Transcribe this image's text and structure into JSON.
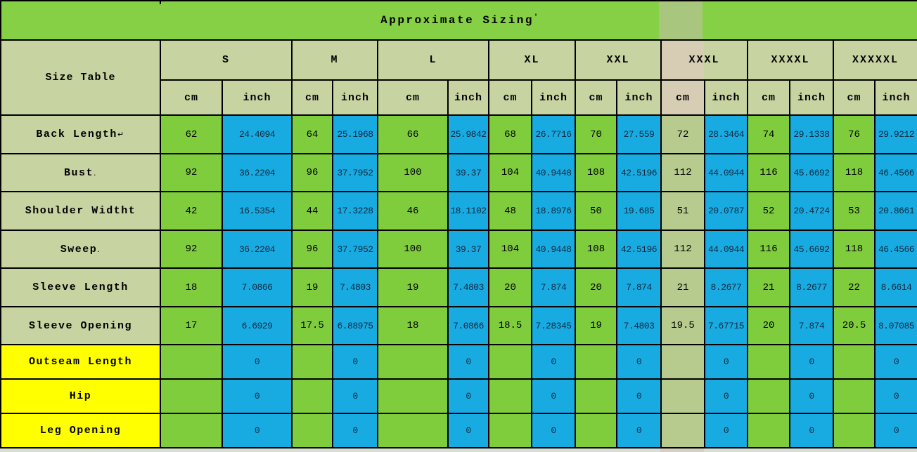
{
  "chart_data": {
    "type": "table",
    "title": "Approximate Sizing",
    "title_mark": "'",
    "corner_label": "Size Table",
    "sizes": [
      "S",
      "M",
      "L",
      "XL",
      "XXL",
      "XXXL",
      "XXXXL",
      "XXXXXL"
    ],
    "units": [
      "cm",
      "inch"
    ],
    "rows": [
      {
        "label": "Back Length",
        "label_suffix": "↵",
        "label_style": "olive",
        "values": [
          "62",
          "24.4094",
          "64",
          "25.1968",
          "66",
          "25.9842",
          "68",
          "26.7716",
          "70",
          "27.559",
          "72",
          "28.3464",
          "74",
          "29.1338",
          "76",
          "29.9212"
        ]
      },
      {
        "label": "Bust",
        "label_suffix": ".",
        "label_style": "olive",
        "values": [
          "92",
          "36.2204",
          "96",
          "37.7952",
          "100",
          "39.37",
          "104",
          "40.9448",
          "108",
          "42.5196",
          "112",
          "44.0944",
          "116",
          "45.6692",
          "118",
          "46.4566"
        ]
      },
      {
        "label": "Shoulder Widtht",
        "label_suffix": "",
        "label_style": "olive",
        "values": [
          "42",
          "16.5354",
          "44",
          "17.3228",
          "46",
          "18.1102",
          "48",
          "18.8976",
          "50",
          "19.685",
          "51",
          "20.0787",
          "52",
          "20.4724",
          "53",
          "20.8661"
        ]
      },
      {
        "label": "Sweep",
        "label_suffix": ".",
        "label_style": "olive",
        "values": [
          "92",
          "36.2204",
          "96",
          "37.7952",
          "100",
          "39.37",
          "104",
          "40.9448",
          "108",
          "42.5196",
          "112",
          "44.0944",
          "116",
          "45.6692",
          "118",
          "46.4566"
        ]
      },
      {
        "label": "Sleeve Length",
        "label_suffix": "",
        "label_style": "olive",
        "values": [
          "18",
          "7.0866",
          "19",
          "7.4803",
          "19",
          "7.4803",
          "20",
          "7.874",
          "20",
          "7.874",
          "21",
          "8.2677",
          "21",
          "8.2677",
          "22",
          "8.6614"
        ]
      },
      {
        "label": "Sleeve Opening",
        "label_suffix": "",
        "label_style": "olive",
        "values": [
          "17",
          "6.6929",
          "17.5",
          "6.88975",
          "18",
          "7.0866",
          "18.5",
          "7.28345",
          "19",
          "7.4803",
          "19.5",
          "7.67715",
          "20",
          "7.874",
          "20.5",
          "8.07085"
        ]
      },
      {
        "label": "Outseam Length",
        "label_suffix": "",
        "label_style": "yellow",
        "values": [
          "",
          "0",
          "",
          "0",
          "",
          "0",
          "",
          "0",
          "",
          "0",
          "",
          "0",
          "",
          "0",
          "",
          "0"
        ]
      },
      {
        "label": "Hip",
        "label_suffix": "",
        "label_style": "yellow",
        "values": [
          "",
          "0",
          "",
          "0",
          "",
          "0",
          "",
          "0",
          "",
          "0",
          "",
          "0",
          "",
          "0",
          "",
          "0"
        ]
      },
      {
        "label": "Leg Opening",
        "label_suffix": "",
        "label_style": "yellow",
        "values": [
          "",
          "0",
          "",
          "0",
          "",
          "0",
          "",
          "0",
          "",
          "0",
          "",
          "0",
          "",
          "0",
          "",
          "0"
        ]
      }
    ]
  },
  "colors": {
    "title_green": "#85d044",
    "cell_green": "#7fcc3d",
    "cell_blue": "#18abe2",
    "header_olive": "#c8d3a2",
    "label_yellow": "#ffff00",
    "strip_tan": "#d6cdb4",
    "strip_olive": "#b6cb8d",
    "strip_title": "#a9c67e",
    "border_black": "#000000"
  }
}
